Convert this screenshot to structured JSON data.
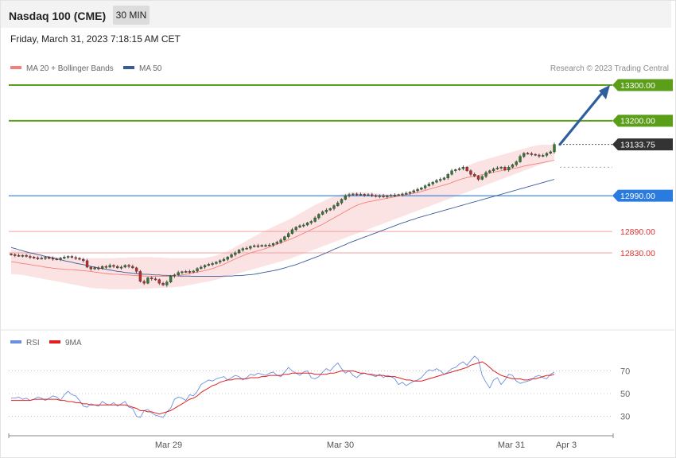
{
  "header": {
    "title": "Nasdaq 100 (CME)",
    "timeframe": "30 MIN"
  },
  "datetime": "Friday, March 31, 2023 7:18:15 AM CET",
  "legend": {
    "bb_label": "MA 20 + Bollinger Bands",
    "ma50_label": "MA 50",
    "credit": "Research © 2023 Trading Central"
  },
  "rsi_legend": {
    "rsi_label": "RSI",
    "ma9_label": "9MA"
  },
  "colors": {
    "up": "#2e7d32",
    "down": "#c62828",
    "ma20": "#f4807a",
    "ma50": "#3a5a9a",
    "band": "#fcdede",
    "resistance": "#5a9e1a",
    "support": "#2a7bdf",
    "pivot": "#f1a0a0",
    "target_arrow": "#2f5e9e",
    "rsi": "#6a8fe0",
    "rsi_ma": "#e02020"
  },
  "chart_data": [
    {
      "type": "candlestick",
      "title": "Nasdaq 100 (CME)",
      "ylim": [
        12720,
        13320
      ],
      "x_ticks": [
        "Mar 29",
        "Mar 30",
        "Mar 31",
        "Apr 3"
      ],
      "close": [
        12825,
        12823,
        12822,
        12823,
        12820,
        12818,
        12816,
        12815,
        12815,
        12817,
        12815,
        12813,
        12812,
        12815,
        12818,
        12820,
        12817,
        12815,
        12812,
        12808,
        12790,
        12785,
        12788,
        12786,
        12792,
        12790,
        12795,
        12792,
        12788,
        12790,
        12795,
        12792,
        12788,
        12778,
        12750,
        12745,
        12760,
        12757,
        12755,
        12745,
        12740,
        12748,
        12765,
        12768,
        12775,
        12777,
        12778,
        12776,
        12779,
        12786,
        12790,
        12795,
        12798,
        12800,
        12804,
        12808,
        12812,
        12818,
        12825,
        12830,
        12838,
        12842,
        12843,
        12848,
        12850,
        12849,
        12851,
        12851,
        12852,
        12856,
        12860,
        12866,
        12875,
        12884,
        12895,
        12902,
        12906,
        12908,
        12914,
        12918,
        12928,
        12938,
        12945,
        12950,
        12954,
        12962,
        12970,
        12980,
        12990,
        12993,
        12995,
        12994,
        12994,
        12992,
        12993,
        12991,
        12988,
        12990,
        12987,
        12990,
        12991,
        12992,
        12993,
        12995,
        12997,
        13000,
        13004,
        13008,
        13012,
        13018,
        13023,
        13028,
        13033,
        13036,
        13040,
        13050,
        13060,
        13063,
        13066,
        13070,
        13060,
        13050,
        13045,
        13036,
        13044,
        13055,
        13060,
        13065,
        13068,
        13070,
        13062,
        13070,
        13077,
        13085,
        13100,
        13109,
        13108,
        13106,
        13104,
        13101,
        13103,
        13109,
        13113,
        13133.75
      ],
      "ma20": [
        12805,
        12804,
        12802,
        12800,
        12799,
        12797,
        12795,
        12794,
        12792,
        12790,
        12789,
        12787,
        12786,
        12785,
        12784,
        12783,
        12783,
        12782,
        12781,
        12780,
        12779,
        12778,
        12776,
        12775,
        12773,
        12772,
        12771,
        12770,
        12770,
        12769,
        12768,
        12768,
        12767,
        12766,
        12766,
        12765,
        12765,
        12764,
        12764,
        12764,
        12764,
        12764,
        12764,
        12765,
        12766,
        12768,
        12770,
        12772,
        12774,
        12776,
        12778,
        12780,
        12783,
        12786,
        12790,
        12794,
        12798,
        12803,
        12808,
        12813,
        12818,
        12822,
        12826,
        12830,
        12833,
        12836,
        12839,
        12842,
        12846,
        12850,
        12854,
        12858,
        12862,
        12866,
        12870,
        12875,
        12880,
        12885,
        12890,
        12895,
        12900,
        12905,
        12910,
        12916,
        12922,
        12928,
        12934,
        12940,
        12946,
        12952,
        12958,
        12963,
        12967,
        12970,
        12973,
        12975,
        12977,
        12979,
        12981,
        12983,
        12985,
        12987,
        12989,
        12991,
        12993,
        12995,
        12997,
        12999,
        13002,
        13005,
        13008,
        13011,
        13014,
        13017,
        13020,
        13023,
        13027,
        13031,
        13035,
        13038,
        13041,
        13043,
        13045,
        13047,
        13049,
        13051,
        13053,
        13056,
        13058,
        13060,
        13062,
        13064,
        13066,
        13068,
        13070,
        13073,
        13075,
        13077,
        13079,
        13081,
        13083,
        13085,
        13087,
        13090
      ],
      "ma50": [
        12845,
        12842,
        12839,
        12836,
        12833,
        12830,
        12828,
        12825,
        12823,
        12820,
        12818,
        12816,
        12813,
        12811,
        12808,
        12806,
        12804,
        12801,
        12799,
        12797,
        12795,
        12792,
        12790,
        12788,
        12786,
        12784,
        12782,
        12780,
        12778,
        12777,
        12775,
        12774,
        12773,
        12772,
        12771,
        12770,
        12770,
        12769,
        12768,
        12768,
        12767,
        12767,
        12766,
        12766,
        12765,
        12765,
        12765,
        12765,
        12764,
        12764,
        12764,
        12764,
        12764,
        12764,
        12764,
        12764,
        12765,
        12765,
        12765,
        12766,
        12766,
        12767,
        12768,
        12769,
        12770,
        12772,
        12774,
        12776,
        12778,
        12780,
        12782,
        12785,
        12788,
        12791,
        12794,
        12797,
        12801,
        12805,
        12809,
        12813,
        12817,
        12821,
        12826,
        12830,
        12835,
        12840,
        12844,
        12849,
        12853,
        12858,
        12862,
        12866,
        12870,
        12874,
        12878,
        12882,
        12886,
        12890,
        12894,
        12898,
        12902,
        12906,
        12910,
        12914,
        12917,
        12921,
        12924,
        12928,
        12931,
        12934,
        12937,
        12940,
        12943,
        12946,
        12949,
        12952,
        12955,
        12958,
        12961,
        12964,
        12967,
        12970,
        12973,
        12976,
        12979,
        12982,
        12985,
        12988,
        12991,
        12994,
        12997,
        13000,
        13003,
        13006,
        13009,
        13012,
        13015,
        13018,
        13021,
        13024,
        13027,
        13030,
        13033,
        13036
      ],
      "bollinger_upper": [
        12840,
        12838,
        12836,
        12834,
        12833,
        12831,
        12829,
        12827,
        12825,
        12823,
        12822,
        12820,
        12818,
        12817,
        12816,
        12815,
        12815,
        12815,
        12815,
        12815,
        12815,
        12815,
        12815,
        12815,
        12815,
        12815,
        12815,
        12815,
        12816,
        12816,
        12816,
        12817,
        12817,
        12817,
        12818,
        12818,
        12818,
        12818,
        12817,
        12817,
        12816,
        12816,
        12815,
        12815,
        12815,
        12815,
        12815,
        12815,
        12815,
        12815,
        12815,
        12816,
        12818,
        12820,
        12823,
        12826,
        12830,
        12835,
        12840,
        12846,
        12852,
        12858,
        12864,
        12870,
        12876,
        12882,
        12888,
        12893,
        12898,
        12903,
        12908,
        12913,
        12918,
        12923,
        12928,
        12934,
        12940,
        12946,
        12952,
        12958,
        12964,
        12969,
        12974,
        12979,
        12984,
        12988,
        12991,
        12994,
        12996,
        12998,
        13000,
        13000,
        13000,
        13000,
        12999,
        12998,
        12997,
        12996,
        12995,
        12994,
        12994,
        12994,
        12995,
        12996,
        12998,
        13000,
        13003,
        13006,
        13010,
        13014,
        13018,
        13023,
        13028,
        13033,
        13038,
        13044,
        13050,
        13056,
        13062,
        13068,
        13073,
        13078,
        13082,
        13086,
        13089,
        13092,
        13095,
        13098,
        13101,
        13104,
        13107,
        13110,
        13113,
        13116,
        13119,
        13122,
        13125,
        13128,
        13130,
        13132,
        13133,
        13133,
        13133,
        13133
      ],
      "bollinger_lower": [
        12770,
        12770,
        12769,
        12768,
        12766,
        12764,
        12762,
        12760,
        12758,
        12756,
        12754,
        12752,
        12750,
        12748,
        12746,
        12744,
        12742,
        12740,
        12738,
        12736,
        12734,
        12732,
        12731,
        12730,
        12730,
        12729,
        12728,
        12728,
        12728,
        12728,
        12728,
        12728,
        12728,
        12728,
        12729,
        12729,
        12730,
        12730,
        12731,
        12731,
        12732,
        12732,
        12733,
        12734,
        12735,
        12736,
        12738,
        12740,
        12742,
        12744,
        12746,
        12748,
        12750,
        12752,
        12755,
        12758,
        12761,
        12764,
        12767,
        12770,
        12773,
        12776,
        12779,
        12782,
        12785,
        12788,
        12791,
        12794,
        12797,
        12800,
        12803,
        12806,
        12809,
        12812,
        12816,
        12820,
        12824,
        12828,
        12832,
        12836,
        12840,
        12844,
        12848,
        12852,
        12856,
        12860,
        12864,
        12868,
        12872,
        12876,
        12880,
        12884,
        12888,
        12892,
        12896,
        12900,
        12904,
        12908,
        12912,
        12916,
        12920,
        12924,
        12928,
        12932,
        12936,
        12940,
        12944,
        12948,
        12952,
        12956,
        12960,
        12964,
        12968,
        12972,
        12976,
        12980,
        12984,
        12988,
        12992,
        12996,
        13000,
        13004,
        13008,
        13012,
        13016,
        13020,
        13024,
        13028,
        13032,
        13036,
        13040,
        13044,
        13048,
        13052,
        13056,
        13060,
        13064,
        13068,
        13072,
        13076,
        13080,
        13084,
        13088,
        13092
      ],
      "levels": [
        {
          "value": 13300.0,
          "label": "13300.00",
          "kind": "resistance"
        },
        {
          "value": 13200.0,
          "label": "13200.00",
          "kind": "resistance"
        },
        {
          "value": 13133.75,
          "label": "13133.75",
          "kind": "last"
        },
        {
          "value": 12990.0,
          "label": "12990.00",
          "kind": "pivot"
        },
        {
          "value": 12890.0,
          "label": "12890.00",
          "kind": "support"
        },
        {
          "value": 12830.0,
          "label": "12830.00",
          "kind": "support"
        }
      ],
      "target_arrow": {
        "from": 13133.75,
        "to": 13300.0
      }
    },
    {
      "type": "line",
      "series": [
        {
          "name": "RSI",
          "values": [
            46,
            46,
            47,
            45,
            46,
            44,
            45,
            47,
            46,
            44,
            46,
            48,
            47,
            44,
            49,
            52,
            49,
            48,
            44,
            39,
            38,
            41,
            40,
            39,
            43,
            41,
            40,
            42,
            39,
            41,
            43,
            38,
            37,
            30,
            29,
            35,
            36,
            33,
            31,
            30,
            29,
            34,
            37,
            45,
            47,
            46,
            44,
            49,
            48,
            52,
            58,
            60,
            62,
            61,
            63,
            64,
            65,
            62,
            64,
            66,
            65,
            62,
            64,
            67,
            66,
            68,
            67,
            66,
            68,
            69,
            66,
            65,
            69,
            73,
            70,
            68,
            66,
            69,
            70,
            64,
            63,
            65,
            69,
            72,
            70,
            74,
            77,
            72,
            68,
            70,
            66,
            64,
            67,
            68,
            67,
            66,
            65,
            67,
            64,
            66,
            65,
            63,
            58,
            60,
            57,
            59,
            61,
            62,
            64,
            68,
            71,
            70,
            72,
            70,
            67,
            69,
            72,
            73,
            76,
            78,
            75,
            79,
            83,
            80,
            66,
            60,
            55,
            62,
            64,
            58,
            62,
            67,
            66,
            61,
            59,
            60,
            61,
            62,
            65,
            66,
            64,
            63,
            67,
            69
          ]
        },
        {
          "name": "9MA",
          "values": [
            44,
            44,
            44,
            44,
            44,
            44,
            45,
            45,
            45,
            45,
            45,
            45,
            45,
            44,
            44,
            43,
            43,
            42,
            42,
            41,
            41,
            40,
            40,
            40,
            40,
            40,
            40,
            40,
            40,
            40,
            40,
            39,
            38,
            37,
            35,
            35,
            34,
            34,
            33,
            32,
            33,
            34,
            35,
            37,
            39,
            41,
            43,
            45,
            46,
            48,
            51,
            53,
            55,
            57,
            58,
            60,
            61,
            62,
            62,
            63,
            63,
            63,
            63,
            64,
            64,
            64,
            65,
            65,
            66,
            66,
            66,
            66,
            67,
            67,
            68,
            68,
            68,
            68,
            68,
            68,
            67,
            67,
            67,
            67,
            68,
            68,
            69,
            70,
            70,
            70,
            70,
            69,
            68,
            68,
            67,
            67,
            66,
            66,
            66,
            65,
            65,
            65,
            64,
            63,
            62,
            62,
            61,
            61,
            61,
            62,
            63,
            64,
            65,
            66,
            67,
            68,
            69,
            70,
            71,
            72,
            73,
            75,
            76,
            77,
            78,
            76,
            73,
            70,
            68,
            66,
            65,
            64,
            63,
            63,
            63,
            62,
            62,
            63,
            63,
            64,
            65,
            66,
            66,
            67
          ]
        }
      ],
      "x_ticks": [
        "Mar 29",
        "Mar 30",
        "Mar 31",
        "Apr 3"
      ],
      "y_ticks": [
        70,
        50,
        30
      ],
      "ylim": [
        15,
        85
      ]
    }
  ]
}
